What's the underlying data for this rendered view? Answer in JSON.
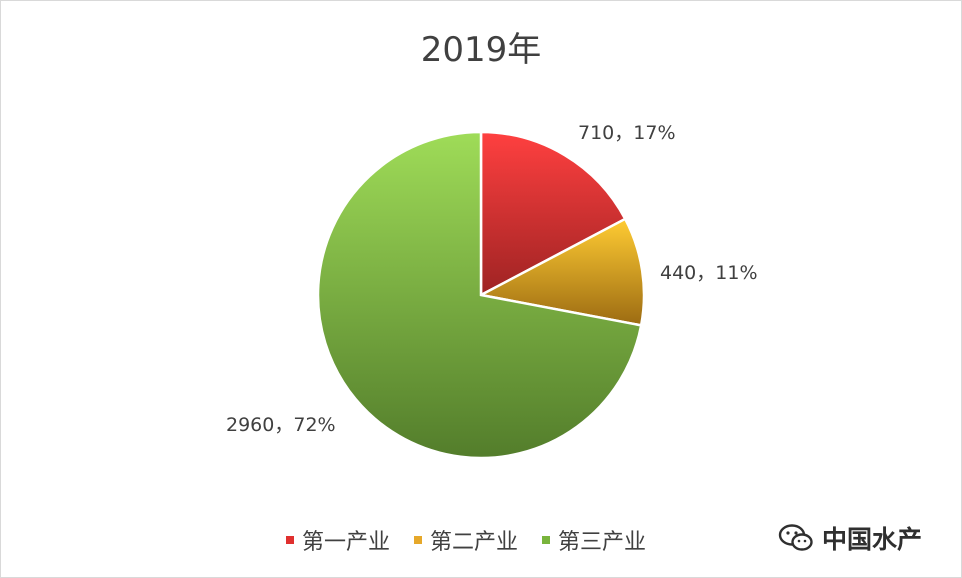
{
  "chart_data": {
    "type": "pie",
    "title": "2019年",
    "categories": [
      "第一产业",
      "第二产业",
      "第三产业"
    ],
    "values": [
      710,
      440,
      2960
    ],
    "percentages": [
      "17%",
      "11%",
      "72%"
    ],
    "labels": [
      "710，17%",
      "440，11%",
      "2960，72%"
    ],
    "colors": [
      "#e0302f",
      "#e6a82a",
      "#79b43c"
    ],
    "legend_position": "bottom"
  },
  "watermark": {
    "text": "中国水产",
    "icon": "wechat-icon"
  }
}
